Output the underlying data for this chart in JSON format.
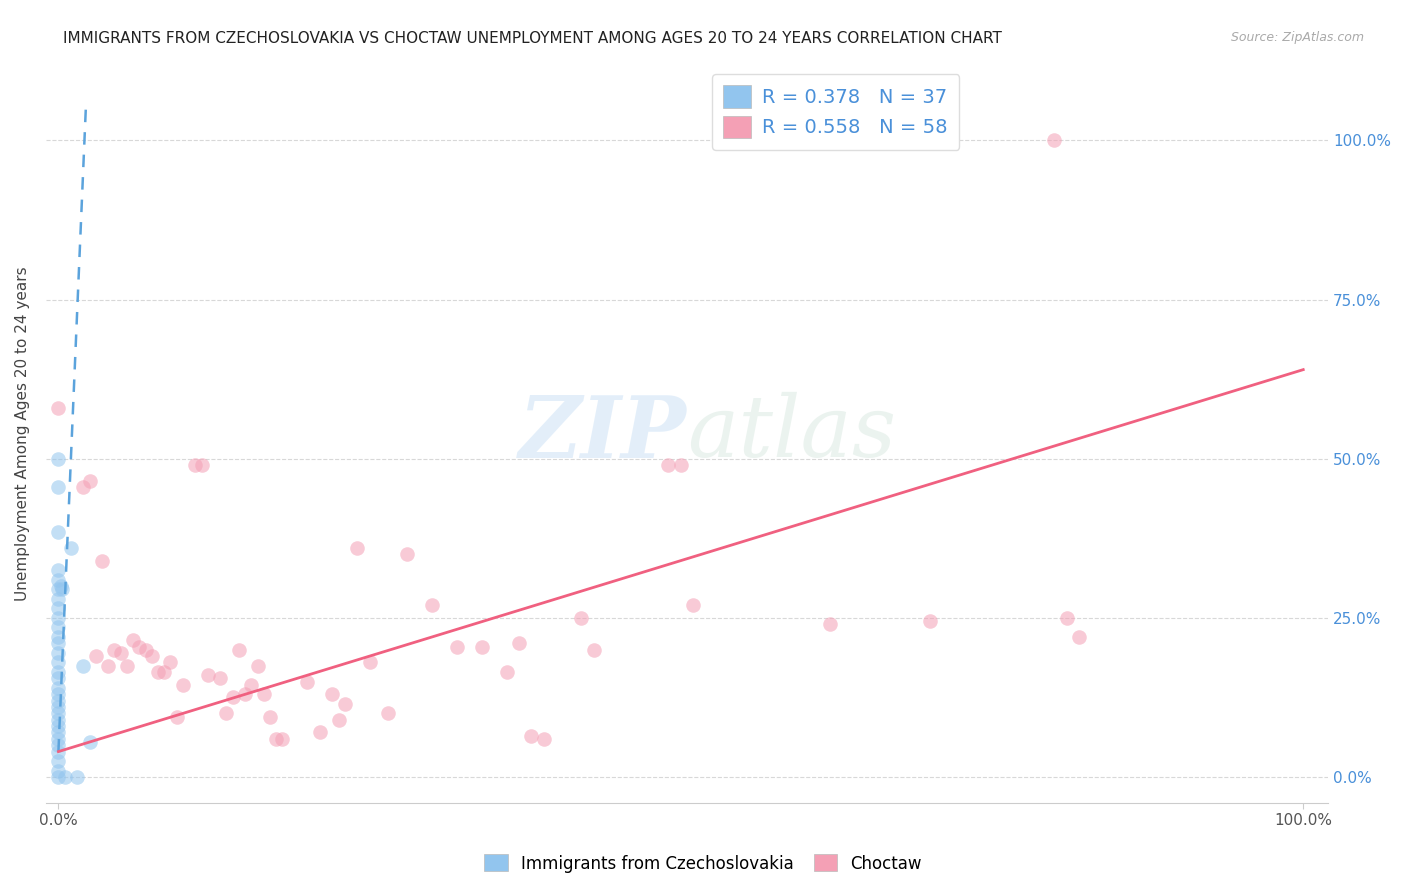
{
  "title": "IMMIGRANTS FROM CZECHOSLOVAKIA VS CHOCTAW UNEMPLOYMENT AMONG AGES 20 TO 24 YEARS CORRELATION CHART",
  "source": "Source: ZipAtlas.com",
  "ylabel": "Unemployment Among Ages 20 to 24 years",
  "legend_blue_R": "R = 0.378",
  "legend_blue_N": "N = 37",
  "legend_pink_R": "R = 0.558",
  "legend_pink_N": "N = 58",
  "blue_color": "#92C5EE",
  "pink_color": "#F4A0B5",
  "blue_line_color": "#5BA3DC",
  "pink_line_color": "#F06080",
  "watermark_zip": "ZIP",
  "watermark_atlas": "atlas",
  "blue_scatter": [
    [
      0.0,
      0.5
    ],
    [
      0.0,
      0.455
    ],
    [
      0.0,
      0.385
    ],
    [
      0.0,
      0.325
    ],
    [
      0.0,
      0.31
    ],
    [
      0.0,
      0.295
    ],
    [
      0.0,
      0.28
    ],
    [
      0.0,
      0.265
    ],
    [
      0.0,
      0.25
    ],
    [
      0.0,
      0.235
    ],
    [
      0.0,
      0.22
    ],
    [
      0.0,
      0.21
    ],
    [
      0.0,
      0.195
    ],
    [
      0.0,
      0.18
    ],
    [
      0.0,
      0.165
    ],
    [
      0.0,
      0.155
    ],
    [
      0.0,
      0.14
    ],
    [
      0.0,
      0.13
    ],
    [
      0.0,
      0.12
    ],
    [
      0.0,
      0.11
    ],
    [
      0.0,
      0.1
    ],
    [
      0.0,
      0.09
    ],
    [
      0.0,
      0.08
    ],
    [
      0.0,
      0.07
    ],
    [
      0.0,
      0.06
    ],
    [
      0.0,
      0.05
    ],
    [
      0.0,
      0.04
    ],
    [
      0.0,
      0.025
    ],
    [
      0.0,
      0.01
    ],
    [
      0.0,
      0.0
    ],
    [
      0.002,
      0.3
    ],
    [
      0.003,
      0.295
    ],
    [
      0.005,
      0.0
    ],
    [
      0.01,
      0.36
    ],
    [
      0.015,
      0.0
    ],
    [
      0.02,
      0.175
    ],
    [
      0.025,
      0.055
    ]
  ],
  "pink_scatter": [
    [
      0.0,
      0.58
    ],
    [
      0.02,
      0.455
    ],
    [
      0.025,
      0.465
    ],
    [
      0.03,
      0.19
    ],
    [
      0.035,
      0.34
    ],
    [
      0.04,
      0.175
    ],
    [
      0.045,
      0.2
    ],
    [
      0.05,
      0.195
    ],
    [
      0.055,
      0.175
    ],
    [
      0.06,
      0.215
    ],
    [
      0.065,
      0.205
    ],
    [
      0.07,
      0.2
    ],
    [
      0.075,
      0.19
    ],
    [
      0.08,
      0.165
    ],
    [
      0.085,
      0.165
    ],
    [
      0.09,
      0.18
    ],
    [
      0.095,
      0.095
    ],
    [
      0.1,
      0.145
    ],
    [
      0.11,
      0.49
    ],
    [
      0.115,
      0.49
    ],
    [
      0.12,
      0.16
    ],
    [
      0.13,
      0.155
    ],
    [
      0.135,
      0.1
    ],
    [
      0.14,
      0.125
    ],
    [
      0.145,
      0.2
    ],
    [
      0.15,
      0.13
    ],
    [
      0.155,
      0.145
    ],
    [
      0.16,
      0.175
    ],
    [
      0.165,
      0.13
    ],
    [
      0.17,
      0.095
    ],
    [
      0.175,
      0.06
    ],
    [
      0.18,
      0.06
    ],
    [
      0.2,
      0.15
    ],
    [
      0.21,
      0.07
    ],
    [
      0.22,
      0.13
    ],
    [
      0.225,
      0.09
    ],
    [
      0.23,
      0.115
    ],
    [
      0.24,
      0.36
    ],
    [
      0.25,
      0.18
    ],
    [
      0.265,
      0.1
    ],
    [
      0.28,
      0.35
    ],
    [
      0.3,
      0.27
    ],
    [
      0.32,
      0.205
    ],
    [
      0.34,
      0.205
    ],
    [
      0.36,
      0.165
    ],
    [
      0.37,
      0.21
    ],
    [
      0.38,
      0.065
    ],
    [
      0.39,
      0.06
    ],
    [
      0.42,
      0.25
    ],
    [
      0.43,
      0.2
    ],
    [
      0.49,
      0.49
    ],
    [
      0.5,
      0.49
    ],
    [
      0.51,
      0.27
    ],
    [
      0.62,
      0.24
    ],
    [
      0.7,
      0.245
    ],
    [
      0.8,
      1.0
    ],
    [
      0.81,
      0.25
    ],
    [
      0.82,
      0.22
    ]
  ],
  "blue_trend_x": [
    0.0,
    0.022
  ],
  "blue_trend_y": [
    0.04,
    1.05
  ],
  "pink_trend_x": [
    0.0,
    1.0
  ],
  "pink_trend_y": [
    0.04,
    0.64
  ],
  "xlim": [
    -0.01,
    1.02
  ],
  "ylim": [
    -0.04,
    1.12
  ],
  "yticks": [
    0.0,
    0.25,
    0.5,
    0.75,
    1.0
  ],
  "ytick_labels": [
    "0.0%",
    "25.0%",
    "50.0%",
    "75.0%",
    "100.0%"
  ],
  "xticks": [
    0.0,
    1.0
  ],
  "xtick_labels": [
    "0.0%",
    "100.0%"
  ],
  "right_tick_color": "#4A90D9",
  "grid_color": "#d8d8d8",
  "label_color": "#555555",
  "title_fontsize": 11,
  "source_fontsize": 9,
  "ylabel_fontsize": 11
}
